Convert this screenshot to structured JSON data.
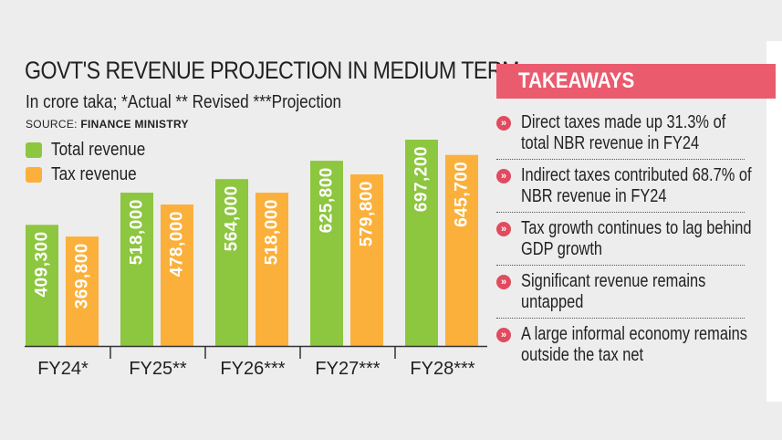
{
  "chart_data": {
    "type": "bar",
    "title": "GOVT'S REVENUE PROJECTION IN MEDIUM TERM",
    "subtitle": "In crore taka; *Actual ** Revised ***Projection",
    "source_prefix": "SOURCE: ",
    "source": "FINANCE MINISTRY",
    "categories": [
      "FY24*",
      "FY25**",
      "FY26***",
      "FY27***",
      "FY28***"
    ],
    "series": [
      {
        "name": "Total revenue",
        "color": "#8dc63f",
        "values": [
          409300,
          518000,
          564000,
          625800,
          697200
        ],
        "labels": [
          "409,300",
          "518,000",
          "564,000",
          "625,800",
          "697,200"
        ]
      },
      {
        "name": "Tax revenue",
        "color": "#fbb03b",
        "values": [
          369800,
          478000,
          518000,
          579800,
          645700
        ],
        "labels": [
          "369,800",
          "478,000",
          "518,000",
          "579,800",
          "645,700"
        ]
      }
    ],
    "xlabel": "",
    "ylabel": "",
    "grid": false,
    "legend": "top-left"
  },
  "takeaways": {
    "heading": "TAKEAWAYS",
    "items": [
      "Direct taxes made up 31.3% of total NBR revenue in FY24",
      "Indirect taxes contributed 68.7% of NBR revenue in FY24",
      "Tax growth continues to lag behind GDP growth",
      "Significant revenue remains untapped",
      "A large informal economy remains outside the tax net"
    ],
    "bullet_glyph": "»"
  }
}
